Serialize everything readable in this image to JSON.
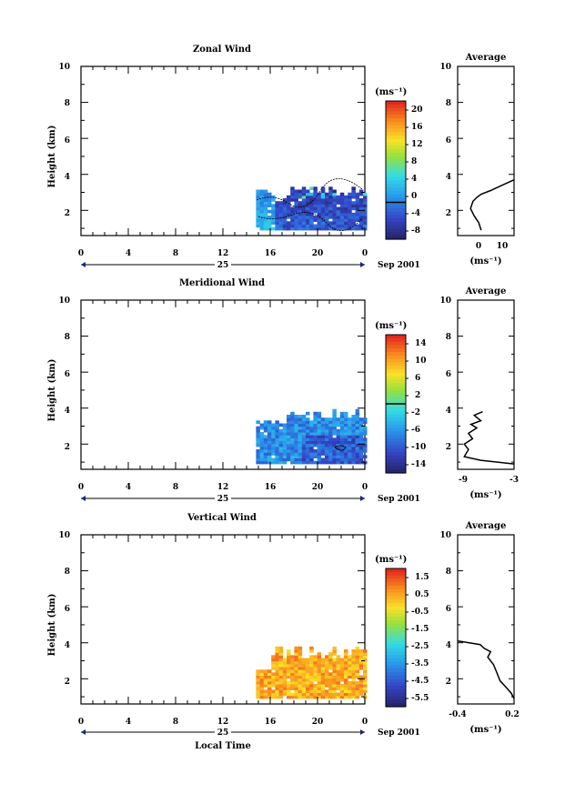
{
  "panels": [
    {
      "title": "Zonal Wind",
      "ylabel": "Height (km)",
      "units": "(ms⁻¹)",
      "y_ticks": [
        "10",
        "8",
        "6",
        "4",
        "2"
      ],
      "x_ticks": [
        "0",
        "4",
        "8",
        "12",
        "16",
        "20",
        "0"
      ],
      "day_label": "25",
      "date_label": "Sep 2001",
      "xlabel": "",
      "colorbar_labels": [
        "20",
        "16",
        "12",
        "8",
        "4",
        "0",
        "-4",
        "-8"
      ],
      "avg_title": "Average",
      "avg_y_ticks": [
        "10",
        "8",
        "6",
        "4",
        "2"
      ],
      "avg_x_ticks": [
        "0",
        "10"
      ],
      "avg_units": "(ms⁻¹)"
    },
    {
      "title": "Meridional Wind",
      "ylabel": "Height (km)",
      "units": "(ms⁻¹)",
      "y_ticks": [
        "10",
        "8",
        "6",
        "4",
        "2"
      ],
      "x_ticks": [
        "0",
        "4",
        "8",
        "12",
        "16",
        "20",
        "0"
      ],
      "day_label": "25",
      "date_label": "Sep 2001",
      "xlabel": "",
      "colorbar_labels": [
        "14",
        "10",
        "6",
        "2",
        "-2",
        "-6",
        "-10",
        "-14"
      ],
      "avg_title": "Average",
      "avg_y_ticks": [
        "10",
        "8",
        "6",
        "4",
        "2"
      ],
      "avg_x_ticks": [
        "-9",
        "-3"
      ],
      "avg_units": "(ms⁻¹)"
    },
    {
      "title": "Vertical Wind",
      "ylabel": "Height (km)",
      "units": "(ms⁻¹)",
      "y_ticks": [
        "10",
        "8",
        "6",
        "4",
        "2"
      ],
      "x_ticks": [
        "0",
        "4",
        "8",
        "12",
        "16",
        "20",
        "0"
      ],
      "day_label": "25",
      "date_label": "Sep 2001",
      "xlabel": "Local Time",
      "colorbar_labels": [
        "1.5",
        "0.5",
        "-0.5",
        "-1.5",
        "-2.5",
        "-3.5",
        "-4.5",
        "-5.5"
      ],
      "avg_title": "Average",
      "avg_y_ticks": [
        "10",
        "8",
        "6",
        "4",
        "2"
      ],
      "avg_x_ticks": [
        "-0.4",
        "0.2"
      ],
      "avg_units": "(ms⁻¹)"
    }
  ],
  "chart_data": [
    {
      "type": "heatmap",
      "title": "Zonal Wind",
      "xlabel": "",
      "ylabel": "Height (km)",
      "xlim": [
        0,
        24
      ],
      "ylim": [
        0.6,
        10
      ],
      "data_x_range": [
        14.8,
        24
      ],
      "color_range": [
        -8,
        22
      ],
      "colorbar_ticks": [
        20,
        16,
        12,
        8,
        4,
        0,
        -4,
        -8
      ],
      "avg_profile": {
        "xlim": [
          -10,
          14
        ],
        "ylim": [
          0.6,
          10
        ],
        "points": [
          [
            0,
            0.9
          ],
          [
            -1,
            1.3
          ],
          [
            -3,
            1.7
          ],
          [
            -4.5,
            2.1
          ],
          [
            -3.5,
            2.5
          ],
          [
            -2,
            2.7
          ],
          [
            0,
            2.9
          ],
          [
            4,
            3.1
          ],
          [
            9,
            3.4
          ],
          [
            14,
            3.7
          ]
        ]
      }
    },
    {
      "type": "heatmap",
      "title": "Meridional Wind",
      "xlabel": "",
      "ylabel": "Height (km)",
      "xlim": [
        0,
        24
      ],
      "ylim": [
        0.6,
        10
      ],
      "data_x_range": [
        14.8,
        24
      ],
      "color_range": [
        -16,
        16
      ],
      "colorbar_ticks": [
        14,
        10,
        6,
        2,
        -2,
        -6,
        -10,
        -14
      ],
      "avg_profile": {
        "xlim": [
          -9.8,
          -3
        ],
        "ylim": [
          0.6,
          10
        ],
        "points": [
          [
            -3,
            0.9
          ],
          [
            -7,
            1.1
          ],
          [
            -9,
            1.3
          ],
          [
            -8.5,
            1.7
          ],
          [
            -9,
            2.0
          ],
          [
            -8,
            2.3
          ],
          [
            -8.5,
            2.6
          ],
          [
            -7.5,
            2.9
          ],
          [
            -8.2,
            3.1
          ],
          [
            -7,
            3.3
          ],
          [
            -7.8,
            3.6
          ],
          [
            -6.8,
            3.8
          ]
        ]
      }
    },
    {
      "type": "heatmap",
      "title": "Vertical Wind",
      "xlabel": "Local Time",
      "ylabel": "Height (km)",
      "xlim": [
        0,
        24
      ],
      "ylim": [
        0.6,
        10
      ],
      "data_x_range": [
        14.8,
        24
      ],
      "color_range": [
        -6,
        2
      ],
      "colorbar_ticks": [
        1.5,
        0.5,
        -0.5,
        -1.5,
        -2.5,
        -3.5,
        -4.5,
        -5.5
      ],
      "avg_profile": {
        "xlim": [
          -0.4,
          0.2
        ],
        "ylim": [
          0.6,
          10
        ],
        "points": [
          [
            0.2,
            0.9
          ],
          [
            0.17,
            1.2
          ],
          [
            0.12,
            1.5
          ],
          [
            0.05,
            1.9
          ],
          [
            0.02,
            2.3
          ],
          [
            -0.02,
            2.8
          ],
          [
            -0.08,
            3.2
          ],
          [
            -0.05,
            3.5
          ],
          [
            -0.12,
            3.7
          ],
          [
            -0.16,
            3.9
          ],
          [
            -0.4,
            4.1
          ]
        ]
      }
    }
  ]
}
